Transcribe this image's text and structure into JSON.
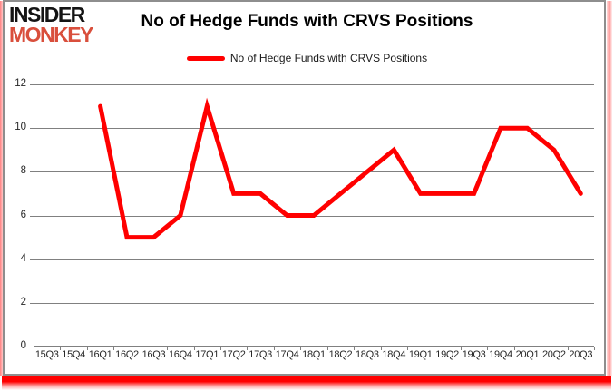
{
  "logo": {
    "line1": "INSIDER",
    "line2": "MONKEY"
  },
  "header": {
    "title": "No of Hedge Funds with CRVS Positions"
  },
  "legend": {
    "label": "No of Hedge Funds with CRVS Positions"
  },
  "chart_data": {
    "type": "line",
    "title": "No of Hedge Funds with CRVS Positions",
    "categories": [
      "15Q3",
      "15Q4",
      "16Q1",
      "16Q2",
      "16Q3",
      "16Q4",
      "17Q1",
      "17Q2",
      "17Q3",
      "17Q4",
      "18Q1",
      "18Q2",
      "18Q3",
      "18Q4",
      "19Q1",
      "19Q2",
      "19Q3",
      "19Q4",
      "20Q1",
      "20Q2",
      "20Q3"
    ],
    "series": [
      {
        "name": "No of Hedge Funds with CRVS Positions",
        "color": "#ff0000",
        "values": [
          null,
          null,
          11,
          5,
          5,
          6,
          11,
          7,
          7,
          6,
          6,
          7,
          8,
          9,
          7,
          7,
          7,
          10,
          10,
          9,
          7
        ]
      }
    ],
    "xlabel": "",
    "ylabel": "",
    "ylim": [
      0,
      12
    ],
    "yticks": [
      0,
      2,
      4,
      6,
      8,
      10,
      12
    ],
    "grid": true,
    "legend_position": "top-center"
  },
  "colors": {
    "line": "#ff0000",
    "grid": "#808080",
    "logo_insider": "#141414",
    "logo_monkey": "#d94f3c",
    "frame": "#8e8e8e",
    "glow": "#ff0000"
  }
}
